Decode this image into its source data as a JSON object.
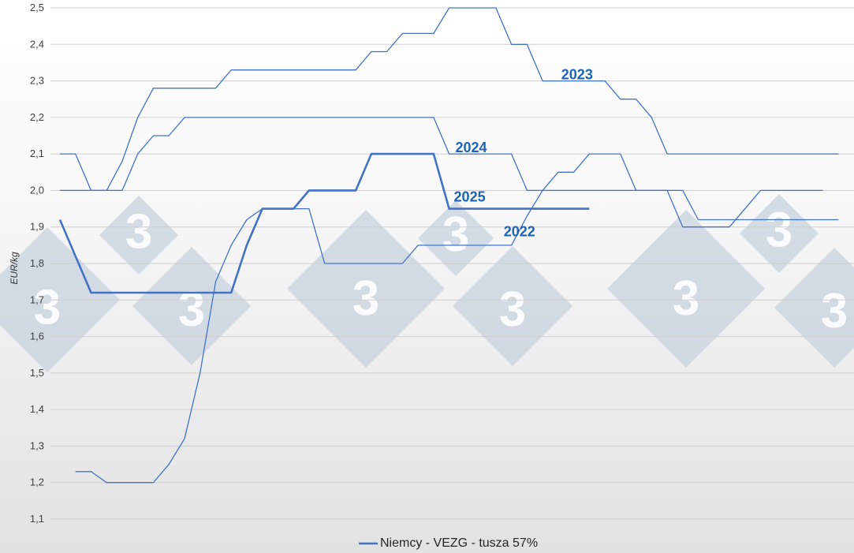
{
  "chart_data": {
    "type": "line",
    "title": "",
    "xlabel": "",
    "ylabel": "EUR/kg",
    "ylim": [
      1.1,
      2.5
    ],
    "yticks": [
      "1,1",
      "1,2",
      "1,3",
      "1,4",
      "1,5",
      "1,6",
      "1,7",
      "1,8",
      "1,9",
      "2,0",
      "2,1",
      "2,2",
      "2,3",
      "2,4",
      "2,5"
    ],
    "grid": true,
    "legend_position": "bottom-center",
    "legend_label": "Niemcy - VEZG - tusza 57%",
    "line_color": "#4472c4",
    "label_color": "#1f63b4",
    "watermark_glyph": "3",
    "series": [
      {
        "label": "2022",
        "label_at": {
          "x": 28.5,
          "y": 1.875
        },
        "emphasis": false,
        "points": [
          [
            1,
            1.23
          ],
          [
            2,
            1.23
          ],
          [
            3,
            1.2
          ],
          [
            4,
            1.2
          ],
          [
            5,
            1.2
          ],
          [
            6,
            1.2
          ],
          [
            7,
            1.25
          ],
          [
            8,
            1.32
          ],
          [
            9,
            1.5
          ],
          [
            10,
            1.75
          ],
          [
            11,
            1.85
          ],
          [
            12,
            1.92
          ],
          [
            13,
            1.95
          ],
          [
            14,
            1.95
          ],
          [
            15,
            1.95
          ],
          [
            16,
            1.95
          ],
          [
            17,
            1.8
          ],
          [
            18,
            1.8
          ],
          [
            19,
            1.8
          ],
          [
            20,
            1.8
          ],
          [
            21,
            1.8
          ],
          [
            22,
            1.8
          ],
          [
            23,
            1.85
          ],
          [
            24,
            1.85
          ],
          [
            25,
            1.85
          ],
          [
            26,
            1.85
          ],
          [
            27,
            1.85
          ],
          [
            28,
            1.85
          ],
          [
            29,
            1.85
          ],
          [
            30,
            1.93
          ],
          [
            31,
            2.0
          ],
          [
            32,
            2.05
          ],
          [
            33,
            2.05
          ],
          [
            34,
            2.1
          ],
          [
            35,
            2.1
          ],
          [
            36,
            2.1
          ],
          [
            37,
            2.0
          ],
          [
            38,
            2.0
          ],
          [
            39,
            2.0
          ],
          [
            40,
            1.9
          ],
          [
            41,
            1.9
          ],
          [
            42,
            1.9
          ],
          [
            43,
            1.9
          ],
          [
            44,
            1.95
          ],
          [
            45,
            2.0
          ],
          [
            46,
            2.0
          ],
          [
            47,
            2.0
          ],
          [
            48,
            2.0
          ],
          [
            49,
            2.0
          ]
        ]
      },
      {
        "label": "2023",
        "label_at": {
          "x": 32.2,
          "y": 2.305
        },
        "emphasis": false,
        "points": [
          [
            0,
            2.1
          ],
          [
            1,
            2.1
          ],
          [
            2,
            2.0
          ],
          [
            3,
            2.0
          ],
          [
            4,
            2.08
          ],
          [
            5,
            2.2
          ],
          [
            6,
            2.28
          ],
          [
            7,
            2.28
          ],
          [
            8,
            2.28
          ],
          [
            9,
            2.28
          ],
          [
            10,
            2.28
          ],
          [
            11,
            2.33
          ],
          [
            12,
            2.33
          ],
          [
            13,
            2.33
          ],
          [
            14,
            2.33
          ],
          [
            15,
            2.33
          ],
          [
            16,
            2.33
          ],
          [
            17,
            2.33
          ],
          [
            18,
            2.33
          ],
          [
            19,
            2.33
          ],
          [
            20,
            2.38
          ],
          [
            21,
            2.38
          ],
          [
            22,
            2.43
          ],
          [
            23,
            2.43
          ],
          [
            24,
            2.43
          ],
          [
            25,
            2.5
          ],
          [
            26,
            2.5
          ],
          [
            27,
            2.5
          ],
          [
            28,
            2.5
          ],
          [
            29,
            2.4
          ],
          [
            30,
            2.4
          ],
          [
            31,
            2.3
          ],
          [
            32,
            2.3
          ],
          [
            33,
            2.3
          ],
          [
            34,
            2.3
          ],
          [
            35,
            2.3
          ],
          [
            36,
            2.25
          ],
          [
            37,
            2.25
          ],
          [
            38,
            2.2
          ],
          [
            39,
            2.1
          ],
          [
            40,
            2.1
          ],
          [
            41,
            2.1
          ],
          [
            42,
            2.1
          ],
          [
            43,
            2.1
          ],
          [
            44,
            2.1
          ],
          [
            45,
            2.1
          ],
          [
            46,
            2.1
          ],
          [
            47,
            2.1
          ],
          [
            48,
            2.1
          ],
          [
            49,
            2.1
          ],
          [
            50,
            2.1
          ]
        ]
      },
      {
        "label": "2024",
        "label_at": {
          "x": 25.4,
          "y": 2.105
        },
        "emphasis": false,
        "points": [
          [
            0,
            2.0
          ],
          [
            1,
            2.0
          ],
          [
            2,
            2.0
          ],
          [
            3,
            2.0
          ],
          [
            4,
            2.0
          ],
          [
            5,
            2.1
          ],
          [
            6,
            2.15
          ],
          [
            7,
            2.15
          ],
          [
            8,
            2.2
          ],
          [
            9,
            2.2
          ],
          [
            10,
            2.2
          ],
          [
            11,
            2.2
          ],
          [
            12,
            2.2
          ],
          [
            13,
            2.2
          ],
          [
            14,
            2.2
          ],
          [
            15,
            2.2
          ],
          [
            16,
            2.2
          ],
          [
            17,
            2.2
          ],
          [
            18,
            2.2
          ],
          [
            19,
            2.2
          ],
          [
            20,
            2.2
          ],
          [
            21,
            2.2
          ],
          [
            22,
            2.2
          ],
          [
            23,
            2.2
          ],
          [
            24,
            2.2
          ],
          [
            25,
            2.1
          ],
          [
            26,
            2.1
          ],
          [
            27,
            2.1
          ],
          [
            28,
            2.1
          ],
          [
            29,
            2.1
          ],
          [
            30,
            2.0
          ],
          [
            31,
            2.0
          ],
          [
            32,
            2.0
          ],
          [
            33,
            2.0
          ],
          [
            34,
            2.0
          ],
          [
            35,
            2.0
          ],
          [
            36,
            2.0
          ],
          [
            37,
            2.0
          ],
          [
            38,
            2.0
          ],
          [
            39,
            2.0
          ],
          [
            40,
            2.0
          ],
          [
            41,
            1.92
          ],
          [
            42,
            1.92
          ],
          [
            43,
            1.92
          ],
          [
            44,
            1.92
          ],
          [
            45,
            1.92
          ],
          [
            46,
            1.92
          ],
          [
            47,
            1.92
          ],
          [
            48,
            1.92
          ],
          [
            49,
            1.92
          ],
          [
            50,
            1.92
          ]
        ]
      },
      {
        "label": "2025",
        "label_at": {
          "x": 25.3,
          "y": 1.97
        },
        "emphasis": true,
        "points": [
          [
            0,
            1.92
          ],
          [
            1,
            1.82
          ],
          [
            2,
            1.72
          ],
          [
            3,
            1.72
          ],
          [
            4,
            1.72
          ],
          [
            5,
            1.72
          ],
          [
            6,
            1.72
          ],
          [
            7,
            1.72
          ],
          [
            8,
            1.72
          ],
          [
            9,
            1.72
          ],
          [
            10,
            1.72
          ],
          [
            11,
            1.72
          ],
          [
            12,
            1.85
          ],
          [
            13,
            1.95
          ],
          [
            14,
            1.95
          ],
          [
            15,
            1.95
          ],
          [
            16,
            2.0
          ],
          [
            17,
            2.0
          ],
          [
            18,
            2.0
          ],
          [
            19,
            2.0
          ],
          [
            20,
            2.1
          ],
          [
            21,
            2.1
          ],
          [
            22,
            2.1
          ],
          [
            23,
            2.1
          ],
          [
            24,
            2.1
          ],
          [
            25,
            1.95
          ],
          [
            26,
            1.95
          ],
          [
            27,
            1.95
          ],
          [
            28,
            1.95
          ],
          [
            29,
            1.95
          ],
          [
            30,
            1.95
          ],
          [
            31,
            1.95
          ],
          [
            32,
            1.95
          ],
          [
            33,
            1.95
          ],
          [
            34,
            1.95
          ]
        ]
      }
    ]
  }
}
